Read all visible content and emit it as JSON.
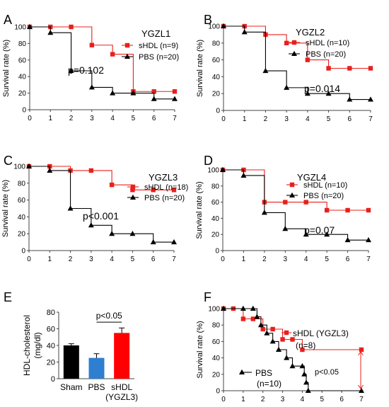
{
  "colors": {
    "shdl": "#e8201c",
    "pbs": "#000000",
    "axis": "#444444",
    "sham": "#000000",
    "pbs_bar": "#2f7fd0",
    "shdl_bar": "#ff0000",
    "pval_arrow": "#e8201c"
  },
  "chart_data": [
    {
      "panel": "A",
      "type": "line",
      "title": "YGZL1",
      "ylabel": "Survival rate (%)",
      "ylim": [
        0,
        100
      ],
      "xlim": [
        0,
        7
      ],
      "yticks": [
        0,
        20,
        40,
        60,
        80,
        100
      ],
      "xticks": [
        0,
        1,
        2,
        3,
        4,
        5,
        6,
        7
      ],
      "annotation": "p=0.102",
      "grid": false,
      "legend": "right",
      "series": [
        {
          "name": "sHDL (n=9)",
          "key": "shdl",
          "marker": "square",
          "points": [
            [
              0,
              100
            ],
            [
              1,
              100
            ],
            [
              2,
              100
            ],
            [
              3,
              78
            ],
            [
              4,
              67
            ],
            [
              5,
              22
            ],
            [
              6,
              22
            ],
            [
              7,
              22
            ]
          ]
        },
        {
          "name": "PBS (n=20)",
          "key": "pbs",
          "marker": "triangle",
          "points": [
            [
              0,
              100
            ],
            [
              1,
              93
            ],
            [
              2,
              47
            ],
            [
              3,
              27
            ],
            [
              4,
              20
            ],
            [
              5,
              20
            ],
            [
              6,
              13
            ],
            [
              7,
              13
            ]
          ]
        }
      ]
    },
    {
      "panel": "B",
      "type": "line",
      "title": "YGZL2",
      "ylabel": "Survival rate (%)",
      "ylim": [
        0,
        100
      ],
      "xlim": [
        0,
        7
      ],
      "yticks": [
        0,
        20,
        40,
        60,
        80,
        100
      ],
      "xticks": [
        0,
        1,
        2,
        3,
        4,
        5,
        6,
        7
      ],
      "annotation": "p=0.014",
      "grid": false,
      "legend": "right",
      "series": [
        {
          "name": "sHDL (n=10)",
          "key": "shdl",
          "marker": "square",
          "points": [
            [
              0,
              100
            ],
            [
              1,
              100
            ],
            [
              2,
              90
            ],
            [
              3,
              80
            ],
            [
              4,
              60
            ],
            [
              5,
              50
            ],
            [
              6,
              50
            ],
            [
              7,
              50
            ]
          ]
        },
        {
          "name": "PBS (n=20)",
          "key": "pbs",
          "marker": "triangle",
          "points": [
            [
              0,
              100
            ],
            [
              1,
              93
            ],
            [
              2,
              47
            ],
            [
              3,
              27
            ],
            [
              4,
              20
            ],
            [
              5,
              20
            ],
            [
              6,
              13
            ],
            [
              7,
              13
            ]
          ]
        }
      ]
    },
    {
      "panel": "C",
      "type": "line",
      "title": "YGZL3",
      "ylabel": "Survival rate (%)",
      "ylim": [
        0,
        100
      ],
      "xlim": [
        0,
        7
      ],
      "yticks": [
        0,
        20,
        40,
        60,
        80,
        100
      ],
      "xticks": [
        0,
        1,
        2,
        3,
        4,
        5,
        6,
        7
      ],
      "annotation": "p<0.001",
      "grid": false,
      "legend": "right",
      "series": [
        {
          "name": "sHDL (n=18)",
          "key": "shdl",
          "marker": "square",
          "points": [
            [
              0,
              100
            ],
            [
              1,
              100
            ],
            [
              2,
              95
            ],
            [
              3,
              95
            ],
            [
              4,
              78
            ],
            [
              5,
              72
            ],
            [
              6,
              72
            ],
            [
              7,
              72
            ]
          ]
        },
        {
          "name": "PBS (n=20)",
          "key": "pbs",
          "marker": "triangle",
          "points": [
            [
              0,
              100
            ],
            [
              1,
              95
            ],
            [
              2,
              50
            ],
            [
              3,
              30
            ],
            [
              4,
              20
            ],
            [
              5,
              20
            ],
            [
              6,
              10
            ],
            [
              7,
              10
            ]
          ]
        }
      ]
    },
    {
      "panel": "D",
      "type": "line",
      "title": "YGZL4",
      "ylabel": "Survival rate (%)",
      "ylim": [
        0,
        100
      ],
      "xlim": [
        0,
        7
      ],
      "yticks": [
        0,
        20,
        40,
        60,
        80,
        100
      ],
      "xticks": [
        0,
        1,
        2,
        3,
        4,
        5,
        6,
        7
      ],
      "annotation": "p=0.07",
      "grid": false,
      "legend": "right",
      "series": [
        {
          "name": "sHDL (n=10)",
          "key": "shdl",
          "marker": "square",
          "points": [
            [
              0,
              100
            ],
            [
              1,
              100
            ],
            [
              2,
              60
            ],
            [
              3,
              60
            ],
            [
              4,
              60
            ],
            [
              5,
              50
            ],
            [
              6,
              50
            ],
            [
              7,
              50
            ]
          ]
        },
        {
          "name": "PBS (n=20)",
          "key": "pbs",
          "marker": "triangle",
          "points": [
            [
              0,
              100
            ],
            [
              1,
              93
            ],
            [
              2,
              47
            ],
            [
              3,
              27
            ],
            [
              4,
              20
            ],
            [
              5,
              20
            ],
            [
              6,
              13
            ],
            [
              7,
              13
            ]
          ]
        }
      ]
    },
    {
      "panel": "E",
      "type": "bar",
      "ylabel": "HDL-cholesterol (mg/dl)",
      "ylabel_lines": [
        "HDL-cholesterol",
        "(mg/dl)"
      ],
      "ylim": [
        0,
        80
      ],
      "yticks": [
        0,
        20,
        40,
        60,
        80
      ],
      "categories": [
        "Sham",
        "PBS",
        "sHDL (YGZL3)"
      ],
      "category_lines": [
        [
          "Sham"
        ],
        [
          "PBS"
        ],
        [
          "sHDL",
          "(YGZL3)"
        ]
      ],
      "values": [
        40,
        25,
        55
      ],
      "errors": [
        2,
        5,
        6
      ],
      "bar_colors": [
        "sham",
        "pbs_bar",
        "shdl_bar"
      ],
      "annotation": "p<0.05",
      "grid": false
    },
    {
      "panel": "F",
      "type": "line",
      "ylabel": "Survival rate (%)",
      "ylim": [
        0,
        100
      ],
      "xlim": [
        0,
        7
      ],
      "yticks": [
        0,
        20,
        40,
        60,
        80,
        100
      ],
      "xticks": [
        0,
        1,
        2,
        3,
        4,
        5,
        6,
        7
      ],
      "annotation": "p<0.05",
      "grid": false,
      "legend": "inside",
      "series": [
        {
          "name": "sHDL (YGZL3)",
          "n_label": "(n=8)",
          "key": "shdl",
          "marker": "square",
          "points": [
            [
              0,
              100
            ],
            [
              0.5,
              100
            ],
            [
              1,
              87.5
            ],
            [
              1.5,
              87.5
            ],
            [
              2,
              75
            ],
            [
              2.5,
              75
            ],
            [
              3,
              62.5
            ],
            [
              3.5,
              62.5
            ],
            [
              4,
              50
            ],
            [
              7,
              50
            ]
          ]
        },
        {
          "name": "PBS",
          "n_label": "(n=10)",
          "key": "pbs",
          "marker": "triangle",
          "points": [
            [
              0,
              100
            ],
            [
              1,
              100
            ],
            [
              1.5,
              100
            ],
            [
              1.7,
              90
            ],
            [
              1.9,
              80
            ],
            [
              2.2,
              70
            ],
            [
              2.5,
              60
            ],
            [
              2.8,
              50
            ],
            [
              3.2,
              40
            ],
            [
              3.5,
              30
            ],
            [
              4.0,
              30
            ],
            [
              4.1,
              20
            ],
            [
              4.2,
              10
            ],
            [
              4.3,
              0
            ],
            [
              7,
              0
            ]
          ]
        }
      ]
    }
  ]
}
